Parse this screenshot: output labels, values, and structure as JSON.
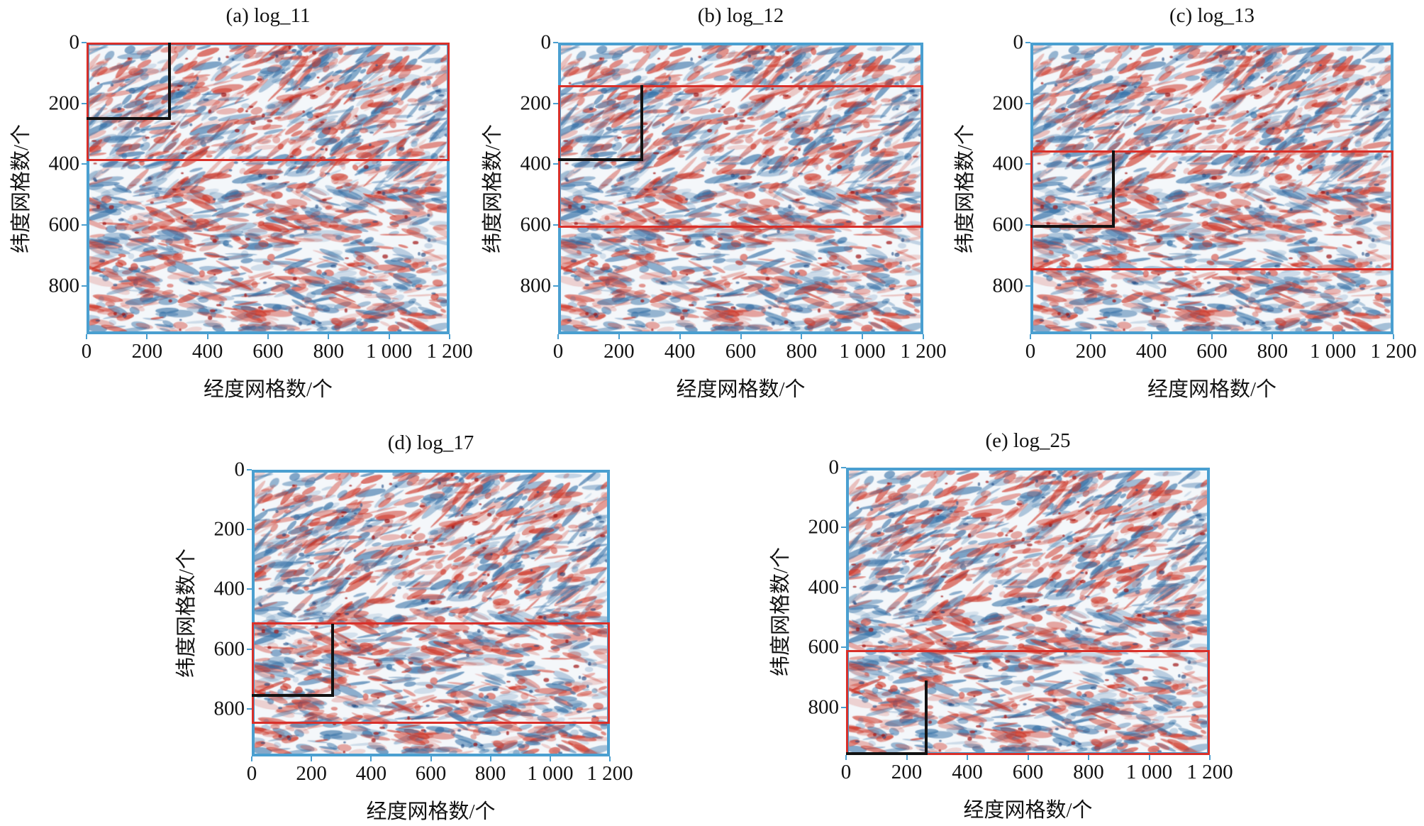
{
  "chart_data": {
    "type": "heatmap",
    "panels": [
      {
        "title": "(a) log_11",
        "red_box": {
          "x": [
            0,
            1200
          ],
          "y": [
            0,
            390
          ]
        },
        "black_box": {
          "x": [
            0,
            280
          ],
          "y": [
            0,
            255
          ]
        }
      },
      {
        "title": "(b) log_12",
        "red_box": {
          "x": [
            0,
            1200
          ],
          "y": [
            140,
            610
          ]
        },
        "black_box": {
          "x": [
            0,
            280
          ],
          "y": [
            140,
            390
          ]
        }
      },
      {
        "title": "(c) log_13",
        "red_box": {
          "x": [
            0,
            1200
          ],
          "y": [
            355,
            750
          ]
        },
        "black_box": {
          "x": [
            0,
            280
          ],
          "y": [
            355,
            610
          ]
        }
      },
      {
        "title": "(d) log_17",
        "red_box": {
          "x": [
            0,
            1200
          ],
          "y": [
            510,
            850
          ]
        },
        "black_box": {
          "x": [
            0,
            275
          ],
          "y": [
            515,
            760
          ]
        }
      },
      {
        "title": "(e) log_25",
        "red_box": {
          "x": [
            0,
            1200
          ],
          "y": [
            610,
            960
          ]
        },
        "black_box": {
          "x": [
            0,
            270
          ],
          "y": [
            710,
            960
          ]
        }
      }
    ],
    "xlabel": "经度网格数/个",
    "ylabel": "纬度网格数/个",
    "xticks": [
      "0",
      "200",
      "400",
      "600",
      "800",
      "1 000",
      "1 200"
    ],
    "xtick_values": [
      0,
      200,
      400,
      600,
      800,
      1000,
      1200
    ],
    "yticks": [
      "0",
      "200",
      "400",
      "600",
      "800"
    ],
    "ytick_values": [
      0,
      200,
      400,
      600,
      800
    ],
    "xlim": [
      0,
      1200
    ],
    "ylim": [
      0,
      960
    ],
    "colormap": [
      "#2b6ea6",
      "#ffffff",
      "#c8281e"
    ],
    "colors": {
      "frame": "#4a9fd0",
      "red_box": "#d9302a",
      "black_box": "#111111"
    }
  }
}
